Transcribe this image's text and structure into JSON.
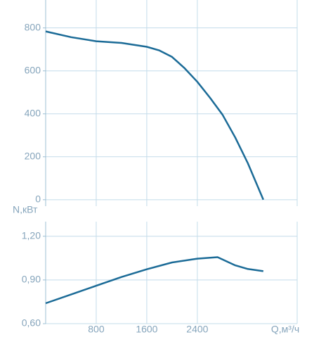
{
  "chart_data": [
    {
      "type": "line",
      "x": [
        0,
        400,
        800,
        1200,
        1600,
        1800,
        2000,
        2200,
        2400,
        2600,
        2800,
        3000,
        3200,
        3444
      ],
      "values": [
        784,
        757,
        738,
        730,
        712,
        695,
        665,
        612,
        549,
        475,
        395,
        290,
        170,
        0
      ],
      "color": "#1b6b97",
      "xlim": [
        0,
        3980
      ],
      "ylim": [
        -30,
        930
      ],
      "yticks": [
        0,
        200,
        400,
        600,
        800
      ],
      "grid": true
    },
    {
      "type": "line",
      "x": [
        0,
        400,
        800,
        1200,
        1600,
        2000,
        2400,
        2720,
        3000,
        3200,
        3444
      ],
      "values": [
        0.74,
        0.8,
        0.86,
        0.92,
        0.973,
        1.02,
        1.046,
        1.056,
        1.0,
        0.975,
        0.96
      ],
      "color": "#1b6b97",
      "xlim": [
        0,
        3980
      ],
      "ylim": [
        0.6,
        1.3
      ],
      "xticks": [
        800,
        1600,
        2400
      ],
      "yticks": [
        {
          "value": 0.6,
          "label": "0,60"
        },
        {
          "value": 0.9,
          "label": "0,90"
        },
        {
          "value": 1.2,
          "label": "1,20"
        }
      ],
      "xlabel": "Q,м³/ч",
      "ylabel": "N,кВт",
      "grid": true
    }
  ]
}
